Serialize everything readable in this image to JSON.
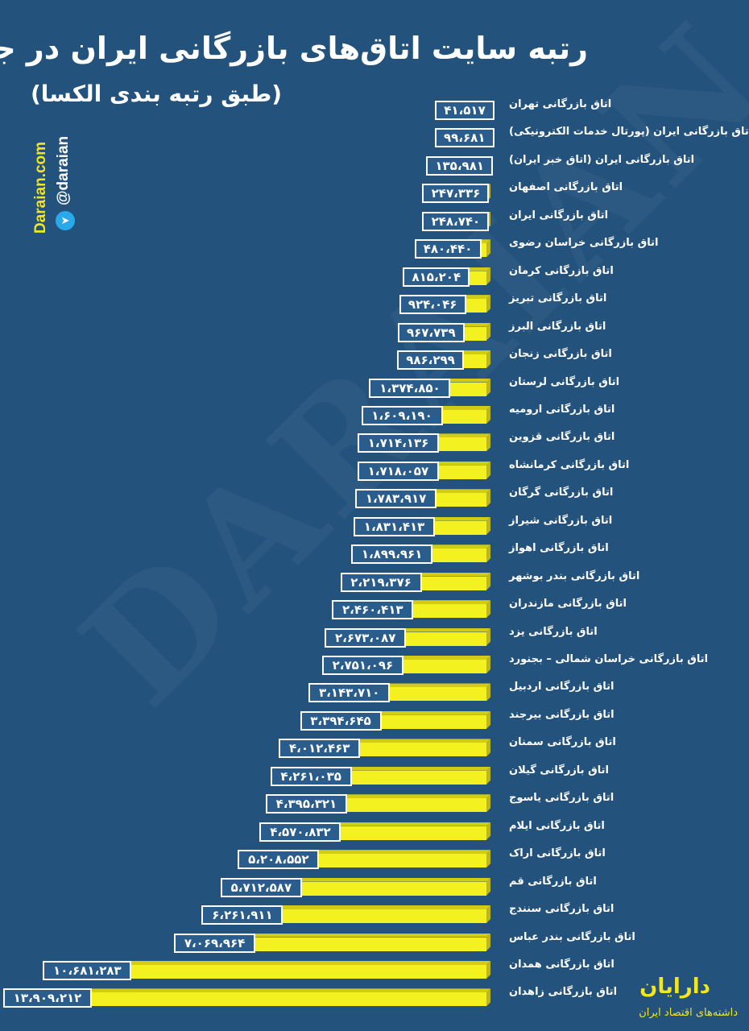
{
  "header": {
    "title": "رتبه سایت اتاق‌های بازرگانی ایران در جهان",
    "subtitle": "(طبق رتبه بندی الکسا)"
  },
  "watermark": "DARAIAN",
  "social": {
    "site": "Daraian.com",
    "handle": "@daraian",
    "icon": "telegram-icon"
  },
  "brand": {
    "name": "دارایان",
    "tagline": "داشته‌های اقتصاد ایران"
  },
  "colors": {
    "background": "#23527c",
    "bar": "#f3f220",
    "bar_top": "#d3cc14",
    "bar_side": "#bdb71c",
    "value_box": "#2a5d8b",
    "accent": "#f3e61d"
  },
  "chart_data": {
    "type": "bar",
    "orientation": "horizontal",
    "title": "رتبه سایت اتاق‌های بازرگانی ایران در جهان",
    "subtitle": "(طبق رتبه بندی الکسا)",
    "categories": [
      "اتاق بازرگانی تهران",
      "اتاق بازرگانی ایران (پورتال خدمات الکترونیکی)",
      "اتاق بازرگانی ایران (اتاق خبر ایران)",
      "اتاق بازرگانی اصفهان",
      "اتاق بازرگانی ایران",
      "اتاق بازرگانی خراسان رضوی",
      "اتاق بازرگانی کرمان",
      "اتاق بازرگانی تبریز",
      "اتاق بازرگانی البرز",
      "اتاق بازرگانی زنجان",
      "اتاق بازرگانی لرستان",
      "اتاق بازرگانی ارومیه",
      "اتاق بازرگانی قزوین",
      "اتاق بازرگانی کرمانشاه",
      "اتاق بازرگانی گرگان",
      "اتاق بازرگانی شیراز",
      "اتاق بازرگانی اهواز",
      "اتاق بازرگانی بندر بوشهر",
      "اتاق بازرگانی مازندران",
      "اتاق بازرگانی یزد",
      "اتاق بازرگانی خراسان شمالی – بجنورد",
      "اتاق بازرگانی اردبیل",
      "اتاق بازرگانی بیرجند",
      "اتاق بازرگانی سمنان",
      "اتاق بازرگانی گیلان",
      "اتاق بازرگانی یاسوج",
      "اتاق بازرگانی ایلام",
      "اتاق بازرگانی اراک",
      "اتاق بازرگانی قم",
      "اتاق بازرگانی سنندج",
      "اتاق بازرگانی بندر عباس",
      "اتاق بازرگانی همدان",
      "اتاق بازرگانی زاهدان"
    ],
    "values": [
      41517,
      99681,
      135981,
      247336,
      248740,
      480440,
      815204,
      924046,
      967739,
      986299,
      1374850,
      1609190,
      1714136,
      1718057,
      1783917,
      1831413,
      1899961,
      2219376,
      2460413,
      2673087,
      2751096,
      3143710,
      3394645,
      4012463,
      4261035,
      4395321,
      4570832,
      5208552,
      5712587,
      6261911,
      7069964,
      10681283,
      13909212
    ],
    "value_labels": [
      "۴۱،۵۱۷",
      "۹۹،۶۸۱",
      "۱۳۵،۹۸۱",
      "۲۴۷،۳۳۶",
      "۲۴۸،۷۴۰",
      "۴۸۰،۴۴۰",
      "۸۱۵،۲۰۴",
      "۹۲۴،۰۴۶",
      "۹۶۷،۷۳۹",
      "۹۸۶،۲۹۹",
      "۱،۳۷۴،۸۵۰",
      "۱،۶۰۹،۱۹۰",
      "۱،۷۱۴،۱۳۶",
      "۱،۷۱۸،۰۵۷",
      "۱،۷۸۳،۹۱۷",
      "۱،۸۳۱،۴۱۳",
      "۱،۸۹۹،۹۶۱",
      "۲،۲۱۹،۳۷۶",
      "۲،۴۶۰،۴۱۳",
      "۲،۶۷۳،۰۸۷",
      "۲،۷۵۱،۰۹۶",
      "۳،۱۴۳،۷۱۰",
      "۳،۳۹۴،۶۴۵",
      "۴،۰۱۲،۴۶۳",
      "۴،۲۶۱،۰۳۵",
      "۴،۳۹۵،۳۲۱",
      "۴،۵۷۰،۸۳۲",
      "۵،۲۰۸،۵۵۲",
      "۵،۷۱۲،۵۸۷",
      "۶،۲۶۱،۹۱۱",
      "۷،۰۶۹،۹۶۴",
      "۱۰،۶۸۱،۲۸۳",
      "۱۳،۹۰۹،۲۱۲"
    ],
    "xlabel": "",
    "ylabel": "",
    "grid": false,
    "legend": "none"
  }
}
